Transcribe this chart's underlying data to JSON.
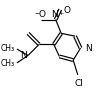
{
  "bg_color": "#ffffff",
  "figsize": [
    0.99,
    0.99
  ],
  "dpi": 100,
  "font_size": 6.5,
  "small_font": 5.5,
  "lw": 0.85
}
